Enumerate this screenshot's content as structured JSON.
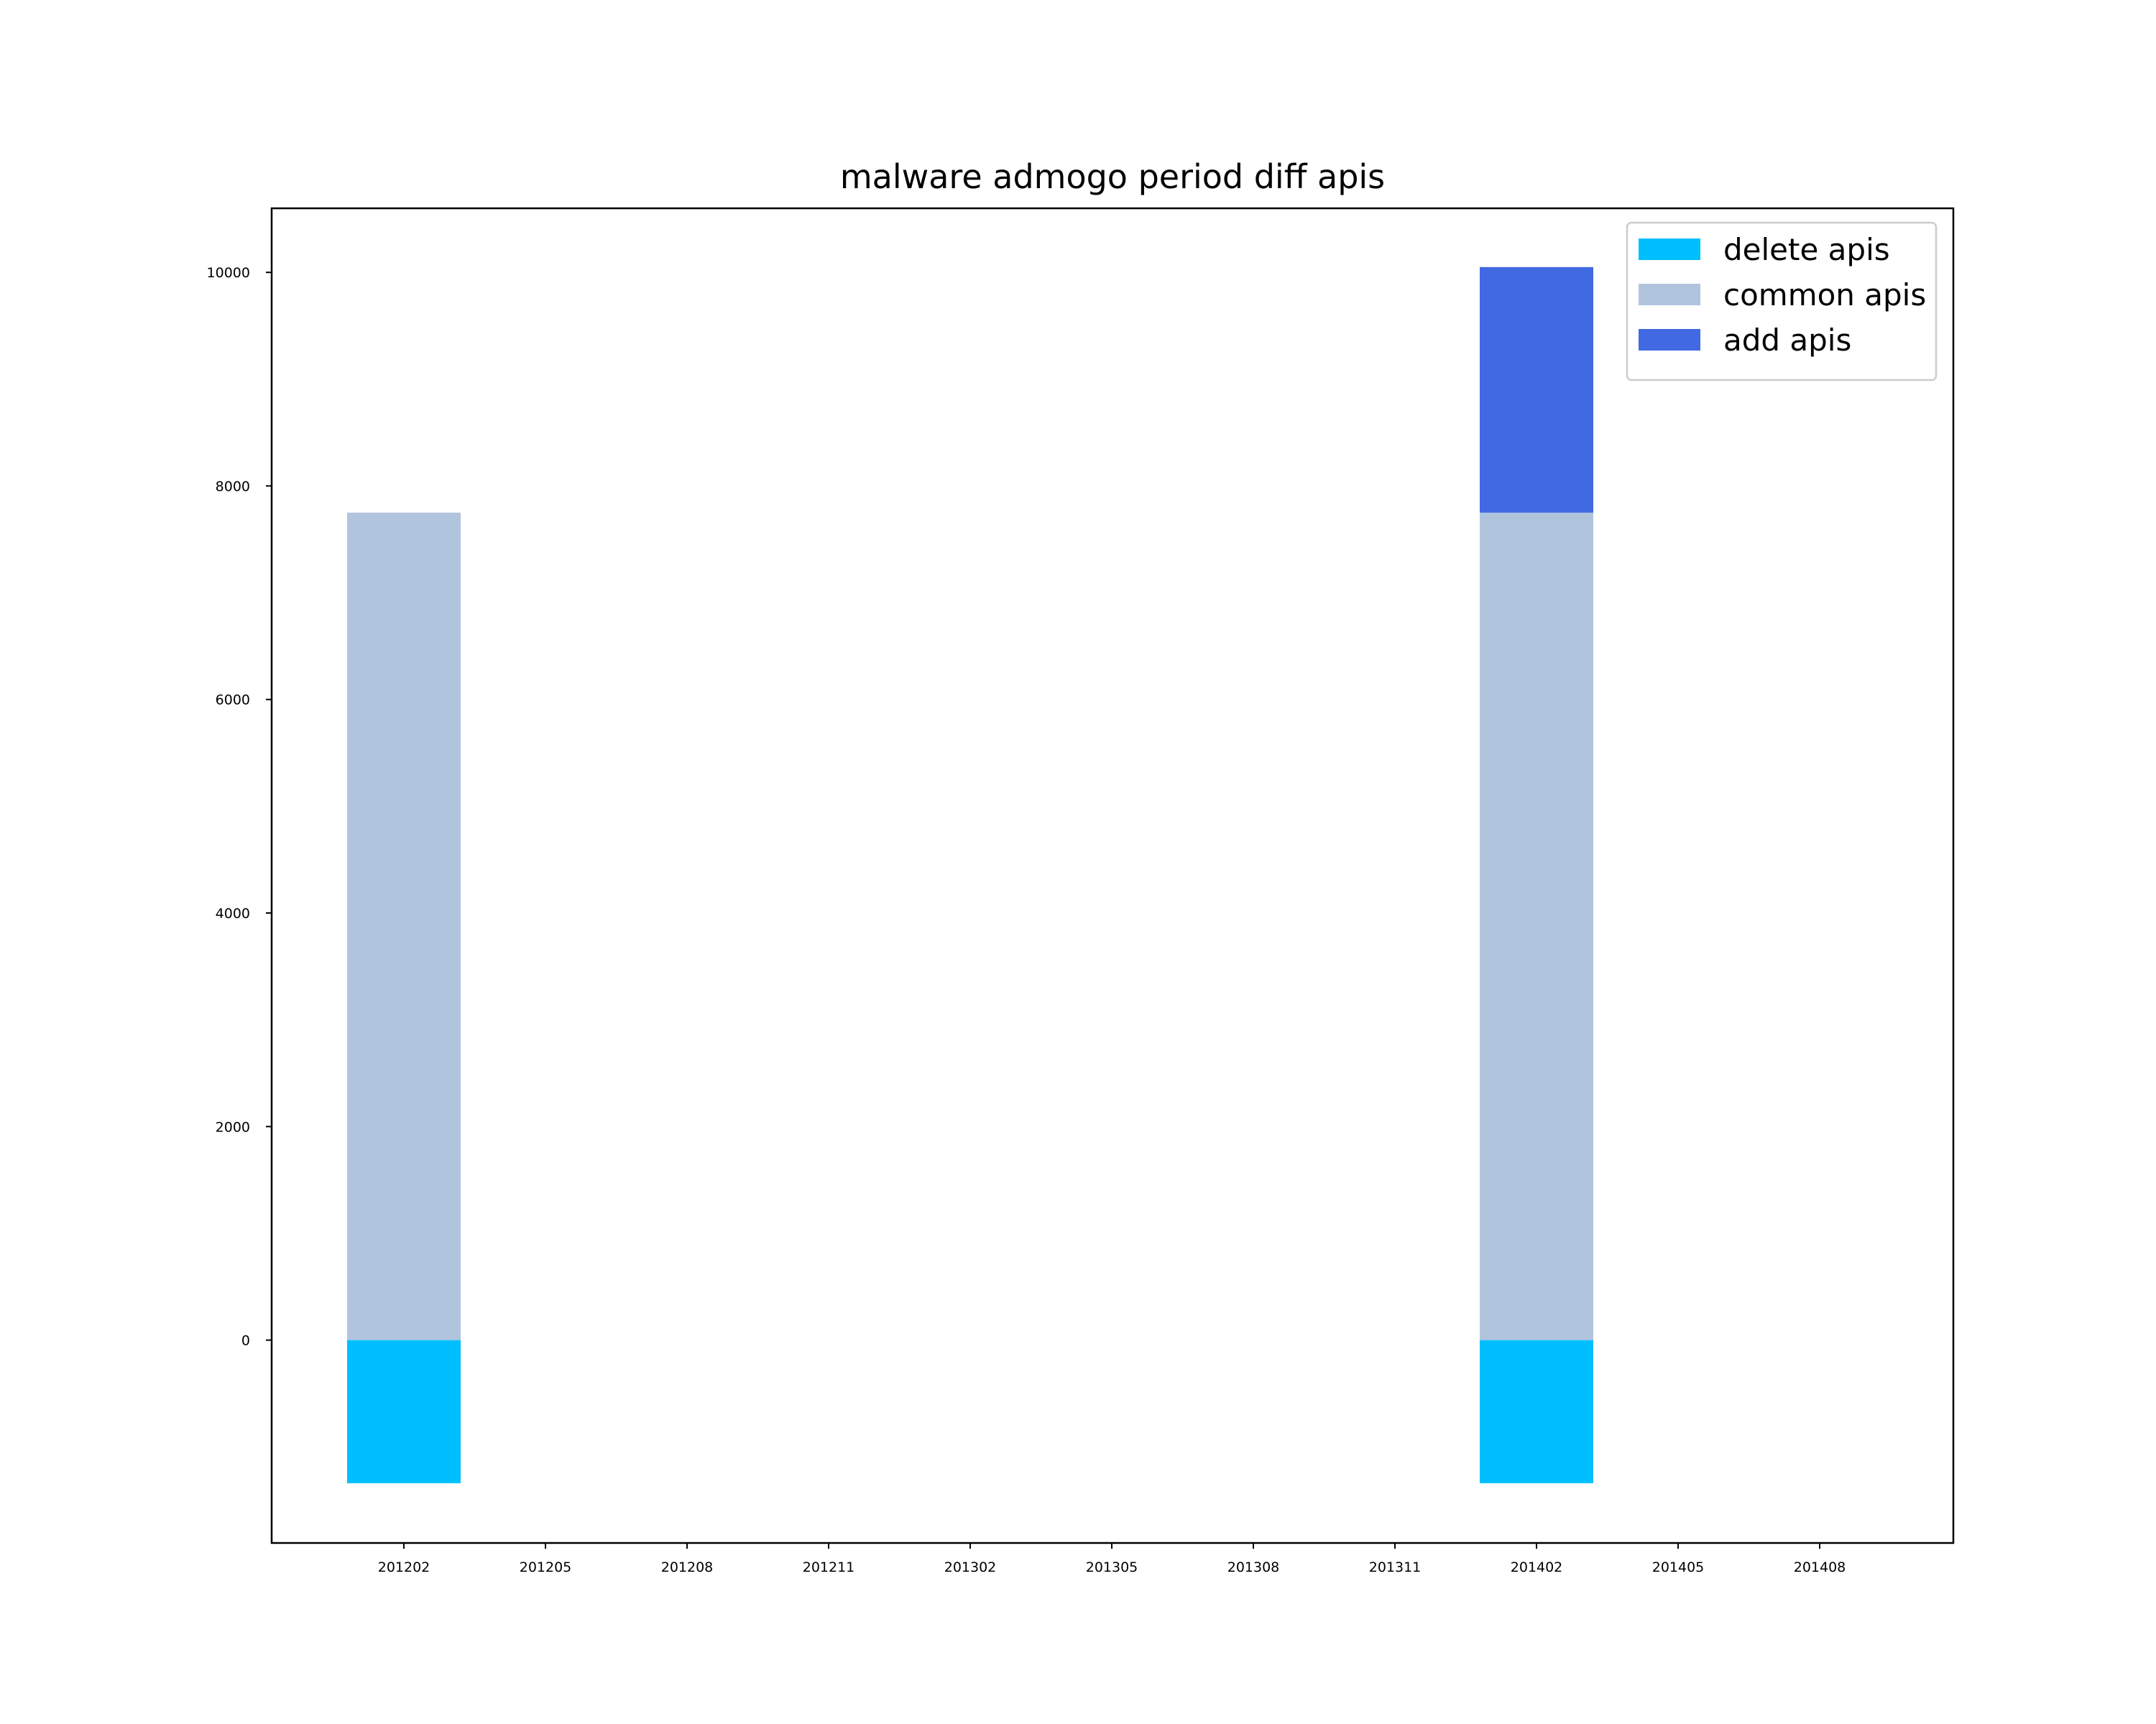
{
  "chart_data": {
    "type": "bar",
    "stacked": true,
    "title": "malware admogo period diff apis",
    "xlabel": "",
    "ylabel": "",
    "categories": [
      "201202",
      "201205",
      "201208",
      "201211",
      "201302",
      "201305",
      "201308",
      "201311",
      "201402",
      "201405",
      "201408"
    ],
    "ylim": [
      -1900,
      10600
    ],
    "yticks": [
      0,
      2000,
      4000,
      6000,
      8000,
      10000
    ],
    "grid": false,
    "legend_position": "top-right",
    "series": [
      {
        "name": "delete apis",
        "color": "#00bfff",
        "values": [
          -1340,
          0,
          0,
          0,
          0,
          0,
          0,
          0,
          -1340,
          0,
          0
        ]
      },
      {
        "name": "common apis",
        "color": "#b0c4de",
        "values": [
          7750,
          0,
          0,
          0,
          0,
          0,
          0,
          0,
          7750,
          0,
          0
        ]
      },
      {
        "name": "add apis",
        "color": "#4169e1",
        "values": [
          0,
          0,
          0,
          0,
          0,
          0,
          0,
          0,
          2300,
          0,
          0
        ]
      }
    ]
  }
}
